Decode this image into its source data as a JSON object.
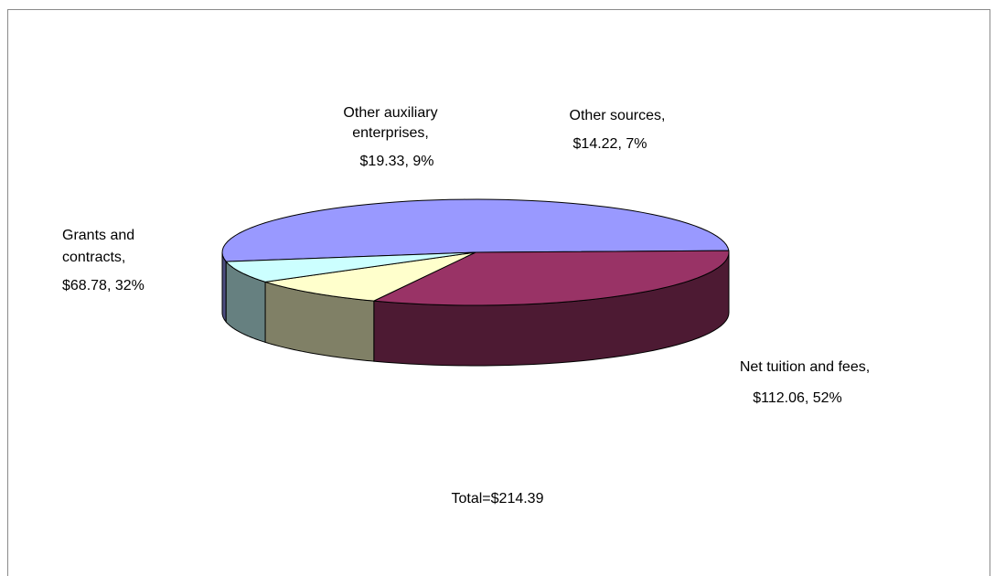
{
  "chart_data": {
    "type": "pie",
    "style": "3d",
    "slices": [
      {
        "category": "Net tuition and fees",
        "value": 112.06,
        "percent": "52%",
        "color": "#9999ff",
        "side_color": "#4d4d80",
        "label_lines": [
          "Net tuition and fees,",
          "$112.06, 52%"
        ]
      },
      {
        "category": "Grants and contracts",
        "value": 68.78,
        "percent": "32%",
        "color": "#993366",
        "side_color": "#4d1a33",
        "label_lines": [
          "Grants and",
          "contracts,",
          "$68.78, 32%"
        ]
      },
      {
        "category": "Other auxiliary enterprises",
        "value": 19.33,
        "percent": "9%",
        "color": "#ffffcc",
        "side_color": "#808066",
        "label_lines": [
          "Other auxiliary",
          "enterprises,",
          "$19.33, 9%"
        ]
      },
      {
        "category": "Other sources",
        "value": 14.22,
        "percent": "7%",
        "color": "#ccffff",
        "side_color": "#668080",
        "label_lines": [
          "Other sources,",
          "$14.22, 7%"
        ]
      }
    ],
    "total_label": "Total=$214.39"
  }
}
